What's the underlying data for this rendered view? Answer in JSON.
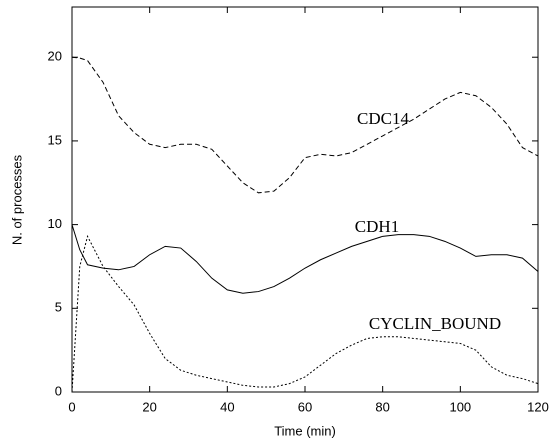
{
  "chart_data": {
    "type": "line",
    "xlabel": "Time (min)",
    "ylabel": "N. of processes",
    "x": [
      0,
      2,
      4,
      8,
      12,
      16,
      20,
      24,
      28,
      32,
      36,
      40,
      44,
      48,
      52,
      56,
      60,
      64,
      68,
      72,
      76,
      80,
      84,
      88,
      92,
      96,
      100,
      104,
      108,
      112,
      116,
      120
    ],
    "series": [
      {
        "name": "CDC14",
        "color": "#000000",
        "style": "dashed",
        "values": [
          20,
          19.95,
          19.8,
          18.5,
          16.5,
          15.5,
          14.8,
          14.6,
          14.8,
          14.8,
          14.5,
          13.5,
          12.5,
          11.9,
          12,
          12.8,
          14,
          14.2,
          14.1,
          14.3,
          14.8,
          15.3,
          15.8,
          16.3,
          16.9,
          17.5,
          17.9,
          17.7,
          17,
          16,
          14.6,
          14.1
        ]
      },
      {
        "name": "CDH1",
        "color": "#000000",
        "style": "solid",
        "values": [
          10,
          8.5,
          7.6,
          7.4,
          7.3,
          7.5,
          8.2,
          8.7,
          8.6,
          7.8,
          6.8,
          6.1,
          5.9,
          6.0,
          6.3,
          6.8,
          7.4,
          7.9,
          8.3,
          8.7,
          9.0,
          9.3,
          9.4,
          9.4,
          9.3,
          9.0,
          8.6,
          8.1,
          8.2,
          8.2,
          8.0,
          7.2
        ]
      },
      {
        "name": "CYCLIN_BOUND",
        "color": "#000000",
        "style": "dotted",
        "values": [
          0,
          7.5,
          9.3,
          7.5,
          6.3,
          5.2,
          3.5,
          2,
          1.3,
          1.0,
          0.8,
          0.6,
          0.4,
          0.3,
          0.3,
          0.5,
          0.9,
          1.6,
          2.3,
          2.8,
          3.2,
          3.3,
          3.3,
          3.2,
          3.1,
          3.0,
          2.9,
          2.5,
          1.5,
          1.0,
          0.8,
          0.5
        ]
      }
    ],
    "xlim": [
      0,
      120
    ],
    "xticks": [
      0,
      20,
      40,
      60,
      80,
      100,
      120
    ],
    "ylim": [
      0,
      23
    ],
    "yticks": [
      0,
      5,
      10,
      15,
      20
    ]
  }
}
